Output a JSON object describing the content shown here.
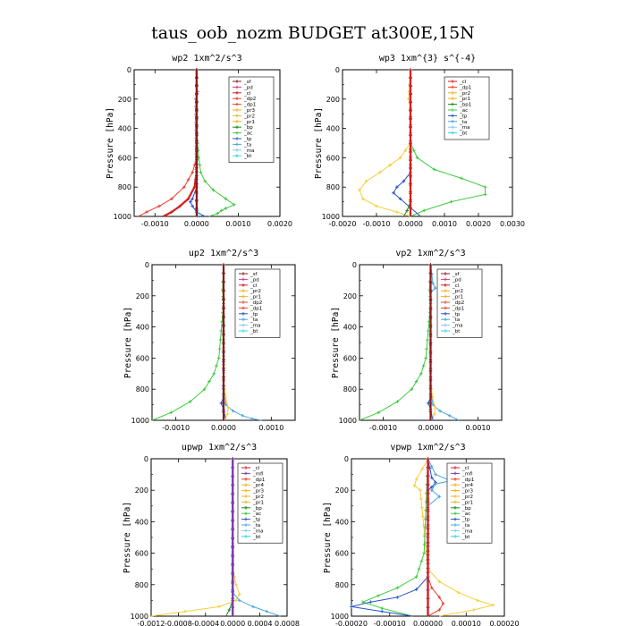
{
  "figure": {
    "title": "taus_oob_nozm  BUDGET at300E,15N"
  },
  "colors": {
    "sf": "#8b1a1a",
    "pd": "#d93b8f",
    "cl": "#d41e1e",
    "mfl": "#7a3fb5",
    "dp": "#e8432e",
    "pr": "#f5b21b",
    "pr1": "#f5cf3a",
    "bp": "#1a8a1a",
    "ac": "#3ecb3e",
    "tp": "#2a55c8",
    "ta": "#4aa6e0",
    "ma": "#8cc7e8",
    "bt": "#2fd6e6"
  },
  "chart_data": [
    {
      "type": "line",
      "id": "wp2",
      "title": "wp2  1xm^2/s^3",
      "ylabel": "Pressure [hPa]",
      "xlim": [
        -0.0015,
        0.002
      ],
      "ylim": [
        1000,
        0
      ],
      "xticks": [
        -0.001,
        0,
        0.001,
        0.002
      ],
      "xticklabels": [
        "-0.0010",
        "0.0000",
        "0.0010",
        "0.0020"
      ],
      "yticks": [
        0,
        200,
        400,
        600,
        800,
        1000
      ],
      "legend": [
        "_sf",
        "_pd",
        "_cl",
        "_dp2",
        "_dp1",
        "_pr3",
        "_pr2",
        "_pr1",
        "_bp",
        "_ac",
        "_tp",
        "_ta",
        "_ma",
        "_bt"
      ],
      "legend_position": "top-right",
      "series": [
        {
          "name": "_ac",
          "color": "ac",
          "x": [
            0,
            0,
            5e-05,
            0.0001,
            0.0002,
            0.0004,
            0.0007,
            0.0009,
            0.0007,
            0.0006,
            0.0005,
            0.0003
          ],
          "y": [
            0,
            400,
            600,
            700,
            760,
            820,
            880,
            920,
            945,
            960,
            980,
            1000
          ]
        },
        {
          "name": "_dp1",
          "color": "dp",
          "x": [
            0,
            0,
            -0.0001,
            -0.0003,
            -0.0006,
            -0.0009,
            -0.0012,
            -0.0014
          ],
          "y": [
            0,
            600,
            700,
            800,
            880,
            930,
            970,
            1000
          ]
        },
        {
          "name": "_cl",
          "color": "cl",
          "x": [
            0,
            0,
            -5e-05,
            -0.0002,
            -0.0004,
            -0.0006,
            -0.0008
          ],
          "y": [
            0,
            700,
            800,
            880,
            930,
            970,
            1000
          ]
        },
        {
          "name": "_tp",
          "color": "tp",
          "x": [
            0,
            0,
            -0.0001,
            -0.00015,
            -0.0001,
            0,
            0.0002
          ],
          "y": [
            0,
            800,
            880,
            900,
            930,
            970,
            1000
          ]
        },
        {
          "name": "_bt",
          "color": "bt",
          "x": [
            0,
            0,
            2e-05,
            3e-05
          ],
          "y": [
            0,
            900,
            960,
            1000
          ]
        },
        {
          "name": "_pd",
          "color": "pd",
          "x": [
            0,
            0,
            2e-05,
            -2e-05,
            0
          ],
          "y": [
            0,
            100,
            150,
            200,
            1000
          ]
        },
        {
          "name": "_sf",
          "color": "sf",
          "x": [
            0,
            0
          ],
          "y": [
            0,
            1000
          ]
        }
      ]
    },
    {
      "type": "line",
      "id": "wp3",
      "title": "wp3  1xm^{3} s^{-4}",
      "ylabel": "Pressure [hPa]",
      "xlim": [
        -0.002,
        0.003
      ],
      "ylim": [
        1000,
        0
      ],
      "xticks": [
        -0.002,
        -0.001,
        0,
        0.001,
        0.002,
        0.003
      ],
      "xticklabels": [
        "-0.0020",
        "-0.0010",
        "0.0000",
        "0.0010",
        "0.0020",
        "0.0030"
      ],
      "yticks": [
        0,
        200,
        400,
        600,
        800,
        1000
      ],
      "legend": [
        "_cl",
        "_dp1",
        "_pr2",
        "_pr1",
        "_bp1",
        "_ac",
        "_tp",
        "_ta",
        "_ma",
        "_bt"
      ],
      "legend_position": "top-right",
      "series": [
        {
          "name": "_pr1",
          "color": "pr1",
          "x": [
            0,
            0,
            -0.0003,
            -0.0009,
            -0.0013,
            -0.0015,
            -0.0014,
            -0.001,
            -0.0004,
            0
          ],
          "y": [
            0,
            500,
            600,
            700,
            760,
            820,
            880,
            930,
            970,
            1000
          ]
        },
        {
          "name": "_ac",
          "color": "ac",
          "x": [
            0,
            0,
            0.0002,
            0.0007,
            0.0015,
            0.0022,
            0.0022,
            0.0012,
            0.0004,
            0
          ],
          "y": [
            0,
            500,
            600,
            680,
            740,
            800,
            850,
            900,
            960,
            1000
          ]
        },
        {
          "name": "_tp",
          "color": "tp",
          "x": [
            0,
            0,
            -0.0002,
            -0.0004,
            -0.0005,
            -0.0003,
            0,
            0.0003
          ],
          "y": [
            0,
            700,
            760,
            800,
            840,
            880,
            940,
            1000
          ]
        },
        {
          "name": "_pr2",
          "color": "pr",
          "x": [
            0,
            -5e-05,
            0,
            0
          ],
          "y": [
            0,
            200,
            260,
            1000
          ]
        },
        {
          "name": "_bp1",
          "color": "bp",
          "x": [
            0,
            0,
            -0.0001,
            -0.0002
          ],
          "y": [
            0,
            900,
            960,
            1000
          ]
        },
        {
          "name": "_cl",
          "color": "cl",
          "x": [
            0,
            0
          ],
          "y": [
            0,
            1000
          ]
        }
      ]
    },
    {
      "type": "line",
      "id": "up2",
      "title": "up2  1xm^2/s^3",
      "ylabel": "Pressure [hPa]",
      "xlim": [
        -0.0015,
        0.0015
      ],
      "ylim": [
        1000,
        0
      ],
      "xticks": [
        -0.001,
        0,
        0.001
      ],
      "xticklabels": [
        "-0.0010",
        "0.0000",
        "0.0010"
      ],
      "yticks": [
        0,
        200,
        400,
        600,
        800,
        1000
      ],
      "legend": [
        "_sf",
        "_pd",
        "_cl",
        "_pr2",
        "_pr1",
        "_dp2",
        "_dp1",
        "_tp",
        "_ta",
        "_ma",
        "_bt"
      ],
      "legend_position": "top-right",
      "series": [
        {
          "name": "_dp1",
          "color": "ac",
          "x": [
            0,
            -2e-05,
            0,
            -0.0001,
            -0.0002,
            -0.0004,
            -0.0007,
            -0.0011,
            -0.0015
          ],
          "y": [
            0,
            160,
            250,
            600,
            700,
            800,
            880,
            950,
            1000
          ]
        },
        {
          "name": "_ta",
          "color": "ta",
          "x": [
            0,
            0,
            5e-05,
            0.0002,
            0.0004,
            0.0006,
            0.0008
          ],
          "y": [
            0,
            800,
            900,
            940,
            970,
            990,
            1000
          ]
        },
        {
          "name": "_tp",
          "color": "tp",
          "x": [
            0,
            0,
            -5e-05,
            0,
            5e-05
          ],
          "y": [
            0,
            850,
            890,
            930,
            1000
          ]
        },
        {
          "name": "_pr1",
          "color": "pr1",
          "x": [
            0,
            0,
            4e-05,
            0.0001,
            8e-05,
            3e-05
          ],
          "y": [
            0,
            750,
            850,
            920,
            960,
            1000
          ]
        },
        {
          "name": "_pd",
          "color": "pd",
          "x": [
            0,
            0
          ],
          "y": [
            0,
            1000
          ]
        },
        {
          "name": "_sf",
          "color": "sf",
          "x": [
            0,
            0
          ],
          "y": [
            0,
            1000
          ]
        }
      ]
    },
    {
      "type": "line",
      "id": "vp2",
      "title": "vp2  1xm^2/s^3",
      "ylabel": "Pressure [hPa]",
      "xlim": [
        -0.0015,
        0.0015
      ],
      "ylim": [
        1000,
        0
      ],
      "xticks": [
        -0.001,
        0,
        0.001
      ],
      "xticklabels": [
        "-0.0010",
        "0.0000",
        "0.0010"
      ],
      "yticks": [
        0,
        200,
        400,
        600,
        800,
        1000
      ],
      "legend": [
        "_sf",
        "_pd",
        "_cl",
        "_pr2",
        "_pr1",
        "_dp2",
        "_dp1",
        "_tp",
        "_ta",
        "_ma",
        "_bt"
      ],
      "legend_position": "top-right",
      "series": [
        {
          "name": "_dp1",
          "color": "ac",
          "x": [
            0,
            -2e-05,
            0,
            -0.0001,
            -0.0002,
            -0.0004,
            -0.0007,
            -0.0011,
            -0.0015
          ],
          "y": [
            0,
            160,
            250,
            600,
            700,
            800,
            880,
            950,
            1000
          ]
        },
        {
          "name": "_ta",
          "color": "ta",
          "x": [
            0,
            5e-05,
            0.0001,
            0,
            0,
            5e-05,
            0.0002,
            0.0004,
            0.0006
          ],
          "y": [
            0,
            120,
            150,
            180,
            800,
            900,
            940,
            970,
            1000
          ]
        },
        {
          "name": "_pr1",
          "color": "pr1",
          "x": [
            0,
            0,
            4e-05,
            0.0001,
            8e-05,
            3e-05
          ],
          "y": [
            0,
            750,
            850,
            920,
            960,
            1000
          ]
        },
        {
          "name": "_tp",
          "color": "tp",
          "x": [
            0,
            0,
            -5e-05,
            0,
            5e-05
          ],
          "y": [
            0,
            850,
            890,
            930,
            1000
          ]
        },
        {
          "name": "_sf",
          "color": "sf",
          "x": [
            0,
            0
          ],
          "y": [
            0,
            1000
          ]
        }
      ]
    },
    {
      "type": "line",
      "id": "upwp",
      "title": "upwp  1xm^2/s^3",
      "ylabel": "Pressure [hPa]",
      "xlim": [
        -0.0012,
        0.0008
      ],
      "ylim": [
        1000,
        0
      ],
      "xticks": [
        -0.0012,
        -0.0008,
        -0.0004,
        0,
        0.0004,
        0.0008
      ],
      "xticklabels": [
        "-0.0012",
        "-0.0008",
        "-0.0004",
        "0.0000",
        "0.0004",
        "0.0008"
      ],
      "yticks": [
        0,
        200,
        400,
        600,
        800,
        1000
      ],
      "legend": [
        "_cl",
        "_mfl",
        "_dp1",
        "_pr4",
        "_pr3",
        "_pr2",
        "_pr1",
        "_bp",
        "_ac",
        "_tp",
        "_ta",
        "_ma",
        "_bt"
      ],
      "legend_position": "top-right",
      "series": [
        {
          "name": "_pr1",
          "color": "pr1",
          "x": [
            0,
            0,
            5e-05,
            0.0001,
            5e-05,
            -0.0002,
            -0.0007,
            -0.0012
          ],
          "y": [
            0,
            700,
            800,
            860,
            900,
            940,
            970,
            1000
          ]
        },
        {
          "name": "_ta",
          "color": "ta",
          "x": [
            0,
            0,
            0.0001,
            0.0003,
            0.0005,
            0.0007
          ],
          "y": [
            0,
            850,
            900,
            940,
            970,
            1000
          ]
        },
        {
          "name": "_bp",
          "color": "bp",
          "x": [
            0,
            0,
            -5e-05,
            -0.0001
          ],
          "y": [
            0,
            900,
            960,
            1000
          ]
        },
        {
          "name": "_cl",
          "color": "cl",
          "x": [
            0,
            0
          ],
          "y": [
            0,
            1000
          ]
        },
        {
          "name": "_mfl",
          "color": "mfl",
          "x": [
            0,
            0
          ],
          "y": [
            0,
            1000
          ]
        }
      ]
    },
    {
      "type": "line",
      "id": "vpwp",
      "title": "vpwp  1xm^2/s^3",
      "ylabel": "Pressure [hPa]",
      "xlim": [
        -0.0002,
        0.0002
      ],
      "ylim": [
        1000,
        0
      ],
      "xticks": [
        -0.0002,
        -0.0001,
        0,
        0.0001,
        0.0002
      ],
      "xticklabels": [
        "-0.00020",
        "-0.00010",
        "0.00000",
        "0.00010",
        "0.00020"
      ],
      "yticks": [
        0,
        200,
        400,
        600,
        800,
        1000
      ],
      "legend": [
        "_cl",
        "_mfl",
        "_dp1",
        "_pr4",
        "_pr3",
        "_pr2",
        "_pr1",
        "_bp",
        "_ac",
        "_tp",
        "_ta",
        "_ma",
        "_bt"
      ],
      "legend_position": "top-right",
      "series": [
        {
          "name": "_pr1",
          "color": "pr1",
          "x": [
            0,
            -3e-05,
            -3.5e-05,
            -2e-05,
            0,
            3e-05,
            8e-05,
            0.00013,
            0.00017,
            0.00012,
            3e-05
          ],
          "y": [
            0,
            130,
            170,
            200,
            700,
            780,
            850,
            900,
            930,
            960,
            1000
          ]
        },
        {
          "name": "_ac",
          "color": "ac",
          "x": [
            0,
            -1e-05,
            -3e-05,
            -8e-05,
            -0.00013,
            -0.00017,
            -0.00012,
            -4e-05
          ],
          "y": [
            0,
            600,
            750,
            820,
            870,
            910,
            950,
            1000
          ]
        },
        {
          "name": "_tp",
          "color": "tp",
          "x": [
            0,
            1e-05,
            2e-05,
            1e-05,
            0,
            0,
            -3e-05,
            -8e-05,
            -0.00015,
            -0.0002,
            -0.00012,
            -4e-05
          ],
          "y": [
            0,
            120,
            150,
            180,
            200,
            750,
            830,
            880,
            910,
            940,
            970,
            1000
          ]
        },
        {
          "name": "_ta",
          "color": "ta",
          "x": [
            0,
            2e-05,
            6e-05,
            2e-05,
            1e-05,
            3e-05,
            0
          ],
          "y": [
            0,
            100,
            140,
            160,
            200,
            240,
            300
          ]
        },
        {
          "name": "_dp1",
          "color": "dp",
          "x": [
            0,
            0,
            1e-05,
            3e-05,
            4e-05,
            3e-05,
            0
          ],
          "y": [
            0,
            750,
            820,
            880,
            920,
            960,
            1000
          ]
        },
        {
          "name": "_mfl",
          "color": "mfl",
          "x": [
            0,
            0
          ],
          "y": [
            0,
            1000
          ]
        },
        {
          "name": "_cl",
          "color": "cl",
          "x": [
            0,
            0
          ],
          "y": [
            0,
            1000
          ]
        }
      ]
    }
  ]
}
